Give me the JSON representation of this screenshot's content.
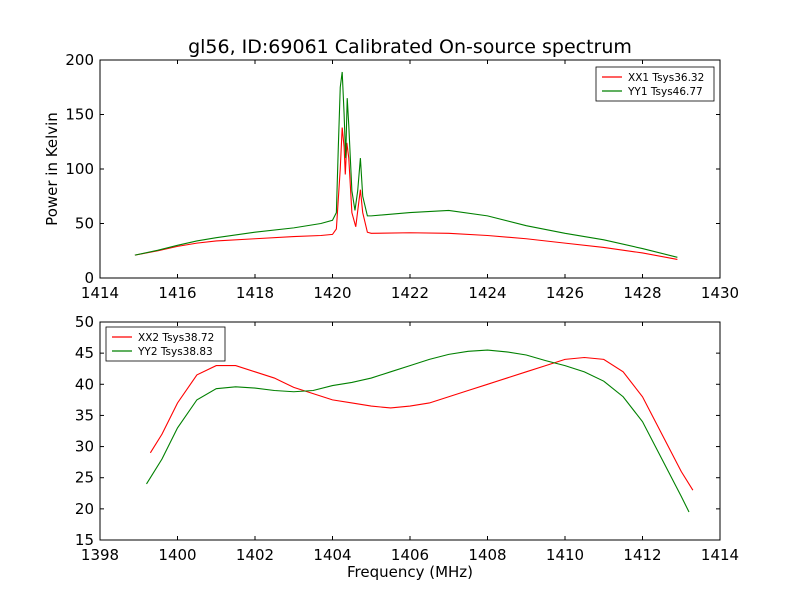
{
  "title": "gl56, ID:69061 Calibrated On-source spectrum",
  "chart_data": [
    {
      "type": "line",
      "ylabel": "Power in Kelvin",
      "xlabel": "",
      "xlim": [
        1414,
        1430
      ],
      "ylim": [
        0,
        200
      ],
      "xticks": [
        1414,
        1416,
        1418,
        1420,
        1422,
        1424,
        1426,
        1428,
        1430
      ],
      "yticks": [
        0,
        50,
        100,
        150,
        200
      ],
      "legend_position": "top-right",
      "series": [
        {
          "name": "XX1 Tsys36.32",
          "color": "#ff0000",
          "points": [
            [
              1414.9,
              21
            ],
            [
              1415.5,
              25
            ],
            [
              1416.0,
              29
            ],
            [
              1416.5,
              32
            ],
            [
              1417.0,
              34
            ],
            [
              1418.0,
              36
            ],
            [
              1419.0,
              38
            ],
            [
              1419.7,
              39
            ],
            [
              1420.0,
              40
            ],
            [
              1420.1,
              45
            ],
            [
              1420.2,
              100
            ],
            [
              1420.25,
              138
            ],
            [
              1420.3,
              120
            ],
            [
              1420.33,
              95
            ],
            [
              1420.37,
              124
            ],
            [
              1420.42,
              110
            ],
            [
              1420.5,
              60
            ],
            [
              1420.6,
              47
            ],
            [
              1420.68,
              70
            ],
            [
              1420.72,
              81
            ],
            [
              1420.78,
              60
            ],
            [
              1420.9,
              42
            ],
            [
              1421.0,
              41
            ],
            [
              1422.0,
              41.5
            ],
            [
              1423.0,
              41
            ],
            [
              1424.0,
              39
            ],
            [
              1425.0,
              36
            ],
            [
              1426.0,
              32
            ],
            [
              1427.0,
              28
            ],
            [
              1428.0,
              23
            ],
            [
              1428.9,
              17
            ]
          ]
        },
        {
          "name": "YY1 Tsys46.77",
          "color": "#008000",
          "points": [
            [
              1414.9,
              21
            ],
            [
              1415.5,
              25.5
            ],
            [
              1416.0,
              30
            ],
            [
              1416.5,
              34
            ],
            [
              1417.0,
              37
            ],
            [
              1418.0,
              42
            ],
            [
              1419.0,
              46
            ],
            [
              1419.7,
              50
            ],
            [
              1420.0,
              53
            ],
            [
              1420.1,
              60
            ],
            [
              1420.15,
              120
            ],
            [
              1420.2,
              175
            ],
            [
              1420.25,
              189
            ],
            [
              1420.3,
              150
            ],
            [
              1420.34,
              110
            ],
            [
              1420.38,
              165
            ],
            [
              1420.42,
              140
            ],
            [
              1420.5,
              80
            ],
            [
              1420.58,
              62
            ],
            [
              1420.65,
              80
            ],
            [
              1420.72,
              110
            ],
            [
              1420.78,
              75
            ],
            [
              1420.9,
              57
            ],
            [
              1421.0,
              57
            ],
            [
              1422.0,
              60
            ],
            [
              1423.0,
              62
            ],
            [
              1424.0,
              57
            ],
            [
              1425.0,
              48
            ],
            [
              1426.0,
              41
            ],
            [
              1427.0,
              35
            ],
            [
              1428.0,
              27
            ],
            [
              1428.9,
              19
            ]
          ]
        }
      ]
    },
    {
      "type": "line",
      "ylabel": "",
      "xlabel": "Frequency (MHz)",
      "xlim": [
        1398,
        1414
      ],
      "ylim": [
        15,
        50
      ],
      "xticks": [
        1398,
        1400,
        1402,
        1404,
        1406,
        1408,
        1410,
        1412,
        1414
      ],
      "yticks": [
        15,
        20,
        25,
        30,
        35,
        40,
        45,
        50
      ],
      "legend_position": "top-left",
      "series": [
        {
          "name": "XX2 Tsys38.72",
          "color": "#ff0000",
          "points": [
            [
              1399.3,
              29
            ],
            [
              1399.6,
              32
            ],
            [
              1400.0,
              37
            ],
            [
              1400.5,
              41.5
            ],
            [
              1401.0,
              43
            ],
            [
              1401.5,
              43
            ],
            [
              1402.0,
              42
            ],
            [
              1402.5,
              41
            ],
            [
              1403.0,
              39.5
            ],
            [
              1403.5,
              38.5
            ],
            [
              1404.0,
              37.5
            ],
            [
              1404.5,
              37
            ],
            [
              1405.0,
              36.5
            ],
            [
              1405.5,
              36.2
            ],
            [
              1406.0,
              36.5
            ],
            [
              1406.5,
              37
            ],
            [
              1407.0,
              38
            ],
            [
              1407.5,
              39
            ],
            [
              1408.0,
              40
            ],
            [
              1408.5,
              41
            ],
            [
              1409.0,
              42
            ],
            [
              1409.5,
              43
            ],
            [
              1410.0,
              44
            ],
            [
              1410.5,
              44.3
            ],
            [
              1411.0,
              44
            ],
            [
              1411.5,
              42
            ],
            [
              1412.0,
              38
            ],
            [
              1412.5,
              32
            ],
            [
              1413.0,
              26
            ],
            [
              1413.3,
              23
            ]
          ]
        },
        {
          "name": "YY2 Tsys38.83",
          "color": "#008000",
          "points": [
            [
              1399.2,
              24
            ],
            [
              1399.6,
              28
            ],
            [
              1400.0,
              33
            ],
            [
              1400.5,
              37.5
            ],
            [
              1401.0,
              39.3
            ],
            [
              1401.5,
              39.6
            ],
            [
              1402.0,
              39.4
            ],
            [
              1402.5,
              39
            ],
            [
              1403.0,
              38.8
            ],
            [
              1403.5,
              39
            ],
            [
              1404.0,
              39.8
            ],
            [
              1404.5,
              40.3
            ],
            [
              1405.0,
              41
            ],
            [
              1405.5,
              42
            ],
            [
              1406.0,
              43
            ],
            [
              1406.5,
              44
            ],
            [
              1407.0,
              44.8
            ],
            [
              1407.5,
              45.3
            ],
            [
              1408.0,
              45.5
            ],
            [
              1408.5,
              45.2
            ],
            [
              1409.0,
              44.7
            ],
            [
              1409.5,
              43.8
            ],
            [
              1410.0,
              43
            ],
            [
              1410.5,
              42
            ],
            [
              1411.0,
              40.5
            ],
            [
              1411.5,
              38
            ],
            [
              1412.0,
              34
            ],
            [
              1412.5,
              28
            ],
            [
              1413.0,
              22
            ],
            [
              1413.2,
              19.5
            ]
          ]
        }
      ]
    }
  ]
}
